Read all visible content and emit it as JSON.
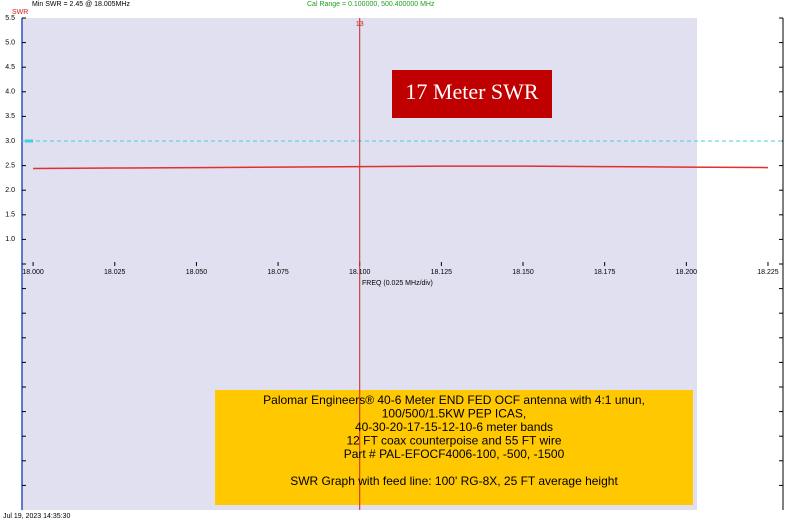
{
  "chart_data": {
    "type": "line",
    "header_left": "Min SWR =  2.45 @  18.005MHz",
    "header_center": "Cal Range = 0.100000,  500.400000 MHz",
    "ylabel": "SWR",
    "xlabel": "FREQ (0.025 MHz/div)",
    "timestamp": "Jul 19, 2023  14:35:30",
    "x": [
      18.0,
      18.025,
      18.05,
      18.075,
      18.1,
      18.125,
      18.15,
      18.175,
      18.2,
      18.225
    ],
    "series": [
      {
        "name": "SWR",
        "color": "#e03030",
        "values": [
          2.44,
          2.45,
          2.46,
          2.47,
          2.48,
          2.49,
          2.49,
          2.48,
          2.47,
          2.46
        ]
      }
    ],
    "xlim": [
      17.9966,
      18.2296
    ],
    "ylim": [
      -4.5,
      5.5
    ],
    "xticks": [
      {
        "value": 18.0,
        "label": "18.000"
      },
      {
        "value": 18.025,
        "label": "18.025"
      },
      {
        "value": 18.05,
        "label": "18.050"
      },
      {
        "value": 18.075,
        "label": "18.075"
      },
      {
        "value": 18.1,
        "label": "18.100"
      },
      {
        "value": 18.125,
        "label": "18.125"
      },
      {
        "value": 18.15,
        "label": "18.150"
      },
      {
        "value": 18.175,
        "label": "18.175"
      },
      {
        "value": 18.2,
        "label": "18.200"
      },
      {
        "value": 18.225,
        "label": "18.225"
      }
    ],
    "yticks": [
      {
        "value": 5.5,
        "label": "5.5"
      },
      {
        "value": 5,
        "label": "5.0"
      },
      {
        "value": 4.5,
        "label": "4.5"
      },
      {
        "value": 4,
        "label": "4.0"
      },
      {
        "value": 3.5,
        "label": "3.5"
      },
      {
        "value": 3,
        "label": "3.0"
      },
      {
        "value": 2.5,
        "label": "2.5"
      },
      {
        "value": 2,
        "label": "2.0"
      },
      {
        "value": 1.5,
        "label": "1.5"
      },
      {
        "value": 1,
        "label": "1.0"
      }
    ],
    "minor_yticks": [
      0.5,
      0,
      -0.5,
      -1,
      -1.5,
      -2,
      -2.5,
      -3,
      -3.5,
      -4
    ],
    "threshold": 3.0,
    "marker": {
      "label": "13",
      "x": 18.1
    },
    "annotations": {
      "title": "17 Meter SWR",
      "description": [
        "Palomar Engineers® 40-6 Meter END FED OCF antenna with 4:1 unun,",
        "100/500/1.5KW PEP ICAS,",
        "40-30-20-17-15-12-10-6 meter bands",
        "12 FT coax counterpoise and 55 FT wire",
        "Part # PAL-EFOCF4006-100,  -500,  -1500",
        "",
        "SWR Graph with feed line: 100' RG-8X, 25 FT average height"
      ]
    }
  }
}
